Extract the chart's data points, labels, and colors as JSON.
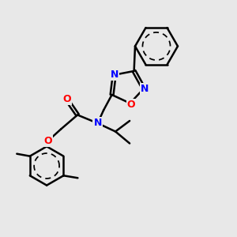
{
  "bg_color": "#e8e8e8",
  "bond_color": "#000000",
  "bond_width": 1.8,
  "atom_colors": {
    "N": "#0000ff",
    "O": "#ff0000",
    "C": "#000000"
  },
  "font_size": 9.0,
  "fig_size": [
    3.0,
    3.0
  ],
  "dpi": 100,
  "xlim": [
    0,
    10
  ],
  "ylim": [
    0,
    10
  ]
}
